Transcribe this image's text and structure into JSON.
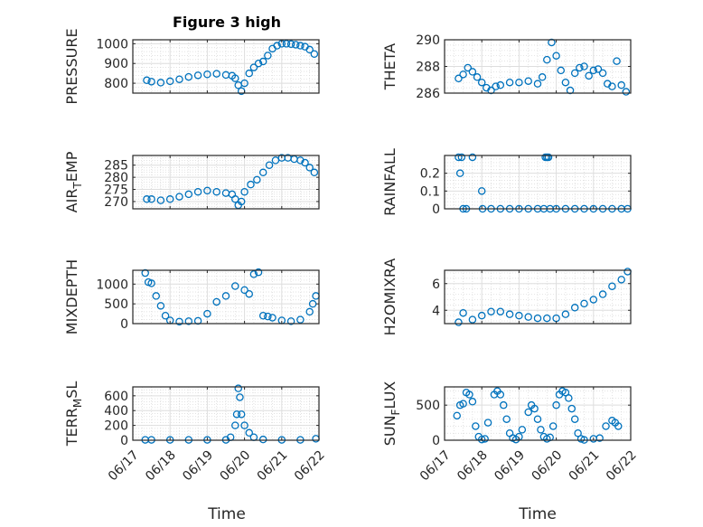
{
  "figure": {
    "title": "Figure 3 high",
    "xlabel": "Time",
    "date_ticks": [
      "06/17",
      "06/18",
      "06/19",
      "06/20",
      "06/21",
      "06/22"
    ],
    "marker_color": "#0072BD"
  },
  "chart_data": [
    {
      "type": "scatter",
      "ylabel": "PRESSURE",
      "ylim": [
        750,
        1020
      ],
      "yticks": [
        800,
        900,
        1000
      ],
      "ytick_labels": [
        "800",
        "900",
        "1000"
      ],
      "x": [
        "2022-06-17 09:00",
        "2022-06-17 12:00",
        "2022-06-17 18:00",
        "2022-06-18 00:00",
        "2022-06-18 06:00",
        "2022-06-18 12:00",
        "2022-06-18 18:00",
        "2022-06-19 00:00",
        "2022-06-19 06:00",
        "2022-06-19 12:00",
        "2022-06-19 16:00",
        "2022-06-19 18:00",
        "2022-06-19 20:00",
        "2022-06-19 22:00",
        "2022-06-20 00:00",
        "2022-06-20 03:00",
        "2022-06-20 06:00",
        "2022-06-20 09:00",
        "2022-06-20 12:00",
        "2022-06-20 15:00",
        "2022-06-20 18:00",
        "2022-06-20 21:00",
        "2022-06-21 00:00",
        "2022-06-21 03:00",
        "2022-06-21 06:00",
        "2022-06-21 09:00",
        "2022-06-21 12:00",
        "2022-06-21 15:00",
        "2022-06-21 18:00",
        "2022-06-21 21:00"
      ],
      "y": [
        815,
        808,
        803,
        810,
        820,
        832,
        840,
        845,
        848,
        842,
        838,
        825,
        790,
        760,
        800,
        850,
        880,
        900,
        910,
        940,
        975,
        990,
        1000,
        1000,
        998,
        995,
        990,
        985,
        970,
        948
      ]
    },
    {
      "type": "scatter",
      "ylabel": "THETA",
      "ylim": [
        286,
        290
      ],
      "yticks": [
        286,
        288,
        290
      ],
      "ytick_labels": [
        "286",
        "288",
        "290"
      ],
      "x": [
        "2022-06-17 09:00",
        "2022-06-17 12:00",
        "2022-06-17 15:00",
        "2022-06-17 18:00",
        "2022-06-17 21:00",
        "2022-06-18 00:00",
        "2022-06-18 03:00",
        "2022-06-18 06:00",
        "2022-06-18 09:00",
        "2022-06-18 12:00",
        "2022-06-18 18:00",
        "2022-06-19 00:00",
        "2022-06-19 06:00",
        "2022-06-19 12:00",
        "2022-06-19 15:00",
        "2022-06-19 18:00",
        "2022-06-19 21:00",
        "2022-06-20 00:00",
        "2022-06-20 03:00",
        "2022-06-20 06:00",
        "2022-06-20 09:00",
        "2022-06-20 12:00",
        "2022-06-20 15:00",
        "2022-06-20 18:00",
        "2022-06-20 21:00",
        "2022-06-21 00:00",
        "2022-06-21 03:00",
        "2022-06-21 06:00",
        "2022-06-21 09:00",
        "2022-06-21 12:00",
        "2022-06-21 15:00",
        "2022-06-21 18:00",
        "2022-06-21 21:00"
      ],
      "y": [
        287.1,
        287.4,
        287.9,
        287.6,
        287.2,
        286.8,
        286.4,
        286.2,
        286.5,
        286.6,
        286.8,
        286.8,
        286.9,
        286.7,
        287.2,
        288.5,
        289.8,
        288.8,
        287.7,
        286.8,
        286.2,
        287.5,
        287.9,
        288.0,
        287.3,
        287.7,
        287.8,
        287.5,
        286.7,
        286.5,
        288.4,
        286.6,
        286.1
      ]
    },
    {
      "type": "scatter",
      "ylabel": "AIR_TEMP",
      "ylim": [
        267,
        289
      ],
      "yticks": [
        270,
        275,
        280,
        285
      ],
      "ytick_labels": [
        "270",
        "275",
        "280",
        "285"
      ],
      "x": [
        "2022-06-17 09:00",
        "2022-06-17 12:00",
        "2022-06-17 18:00",
        "2022-06-18 00:00",
        "2022-06-18 06:00",
        "2022-06-18 12:00",
        "2022-06-18 18:00",
        "2022-06-19 00:00",
        "2022-06-19 06:00",
        "2022-06-19 12:00",
        "2022-06-19 16:00",
        "2022-06-19 18:00",
        "2022-06-19 20:00",
        "2022-06-19 22:00",
        "2022-06-20 00:00",
        "2022-06-20 04:00",
        "2022-06-20 08:00",
        "2022-06-20 12:00",
        "2022-06-20 16:00",
        "2022-06-20 20:00",
        "2022-06-21 00:00",
        "2022-06-21 04:00",
        "2022-06-21 08:00",
        "2022-06-21 12:00",
        "2022-06-21 15:00",
        "2022-06-21 18:00",
        "2022-06-21 21:00"
      ],
      "y": [
        271,
        271,
        270.5,
        271,
        272,
        273,
        274,
        274.5,
        274,
        273.5,
        273,
        271,
        268.5,
        270,
        274,
        277,
        279,
        282,
        285,
        287,
        288,
        288,
        287.5,
        287,
        286,
        284,
        282
      ]
    },
    {
      "type": "scatter",
      "ylabel": "RAINFALL",
      "ylim": [
        0,
        0.3
      ],
      "yticks": [
        0,
        0.1,
        0.2
      ],
      "ytick_labels": [
        "0",
        "0.1",
        "0.2"
      ],
      "x": [
        "2022-06-17 09:00",
        "2022-06-17 10:00",
        "2022-06-17 11:00",
        "2022-06-17 12:00",
        "2022-06-17 14:00",
        "2022-06-17 18:00",
        "2022-06-18 00:00",
        "2022-06-18 00:30",
        "2022-06-18 06:00",
        "2022-06-18 12:00",
        "2022-06-18 18:00",
        "2022-06-19 00:00",
        "2022-06-19 06:00",
        "2022-06-19 12:00",
        "2022-06-19 16:00",
        "2022-06-19 17:00",
        "2022-06-19 18:00",
        "2022-06-19 19:00",
        "2022-06-19 20:00",
        "2022-06-20 00:00",
        "2022-06-20 06:00",
        "2022-06-20 12:00",
        "2022-06-20 18:00",
        "2022-06-21 00:00",
        "2022-06-21 06:00",
        "2022-06-21 12:00",
        "2022-06-21 18:00",
        "2022-06-21 22:00"
      ],
      "y": [
        0.29,
        0.2,
        0.29,
        0,
        0,
        0.29,
        0.1,
        0,
        0,
        0,
        0,
        0,
        0,
        0,
        0,
        0.29,
        0.29,
        0.29,
        0,
        0,
        0,
        0,
        0,
        0,
        0,
        0,
        0,
        0
      ]
    },
    {
      "type": "scatter",
      "ylabel": "MIXDEPTH",
      "ylim": [
        0,
        1350
      ],
      "yticks": [
        0,
        500,
        1000
      ],
      "ytick_labels": [
        "0",
        "500",
        "1000"
      ],
      "x": [
        "2022-06-17 08:00",
        "2022-06-17 10:00",
        "2022-06-17 12:00",
        "2022-06-17 15:00",
        "2022-06-17 18:00",
        "2022-06-17 21:00",
        "2022-06-18 00:00",
        "2022-06-18 06:00",
        "2022-06-18 12:00",
        "2022-06-18 18:00",
        "2022-06-19 00:00",
        "2022-06-19 06:00",
        "2022-06-19 12:00",
        "2022-06-19 18:00",
        "2022-06-20 00:00",
        "2022-06-20 03:00",
        "2022-06-20 06:00",
        "2022-06-20 09:00",
        "2022-06-20 12:00",
        "2022-06-20 15:00",
        "2022-06-20 18:00",
        "2022-06-21 00:00",
        "2022-06-21 06:00",
        "2022-06-21 12:00",
        "2022-06-21 18:00",
        "2022-06-21 20:00",
        "2022-06-21 22:00"
      ],
      "y": [
        1280,
        1050,
        1020,
        700,
        450,
        200,
        80,
        50,
        60,
        70,
        250,
        550,
        700,
        950,
        850,
        750,
        1250,
        1300,
        200,
        180,
        150,
        80,
        60,
        100,
        300,
        500,
        700
      ]
    },
    {
      "type": "scatter",
      "ylabel": "H2OMIXRA",
      "ylim": [
        3,
        7
      ],
      "yticks": [
        4,
        6
      ],
      "ytick_labels": [
        "4",
        "6"
      ],
      "x": [
        "2022-06-17 09:00",
        "2022-06-17 12:00",
        "2022-06-17 18:00",
        "2022-06-18 00:00",
        "2022-06-18 06:00",
        "2022-06-18 12:00",
        "2022-06-18 18:00",
        "2022-06-19 00:00",
        "2022-06-19 06:00",
        "2022-06-19 12:00",
        "2022-06-19 18:00",
        "2022-06-20 00:00",
        "2022-06-20 06:00",
        "2022-06-20 12:00",
        "2022-06-20 18:00",
        "2022-06-21 00:00",
        "2022-06-21 06:00",
        "2022-06-21 12:00",
        "2022-06-21 18:00",
        "2022-06-21 22:00"
      ],
      "y": [
        3.1,
        3.8,
        3.3,
        3.6,
        3.9,
        3.9,
        3.7,
        3.6,
        3.5,
        3.4,
        3.4,
        3.4,
        3.7,
        4.2,
        4.5,
        4.8,
        5.2,
        5.8,
        6.3,
        6.9
      ]
    },
    {
      "type": "scatter",
      "ylabel": "TERR_MSL",
      "ylim": [
        0,
        720
      ],
      "yticks": [
        0,
        200,
        400,
        600
      ],
      "ytick_labels": [
        "0",
        "200",
        "400",
        "600"
      ],
      "x": [
        "2022-06-17 08:00",
        "2022-06-17 12:00",
        "2022-06-18 00:00",
        "2022-06-18 12:00",
        "2022-06-19 00:00",
        "2022-06-19 12:00",
        "2022-06-19 15:00",
        "2022-06-19 18:00",
        "2022-06-19 19:00",
        "2022-06-19 20:00",
        "2022-06-19 21:00",
        "2022-06-19 22:00",
        "2022-06-20 00:00",
        "2022-06-20 03:00",
        "2022-06-20 06:00",
        "2022-06-20 12:00",
        "2022-06-21 00:00",
        "2022-06-21 12:00",
        "2022-06-21 22:00"
      ],
      "y": [
        5,
        5,
        5,
        5,
        5,
        5,
        40,
        200,
        350,
        700,
        580,
        350,
        200,
        100,
        40,
        10,
        5,
        5,
        20
      ]
    },
    {
      "type": "scatter",
      "ylabel": "SUN_FLUX",
      "ylim": [
        0,
        760
      ],
      "yticks": [
        0,
        500
      ],
      "ytick_labels": [
        "0",
        "500"
      ],
      "x": [
        "2022-06-17 08:00",
        "2022-06-17 10:00",
        "2022-06-17 12:00",
        "2022-06-17 14:00",
        "2022-06-17 16:00",
        "2022-06-17 18:00",
        "2022-06-17 20:00",
        "2022-06-17 22:00",
        "2022-06-18 00:00",
        "2022-06-18 02:00",
        "2022-06-18 04:00",
        "2022-06-18 08:00",
        "2022-06-18 10:00",
        "2022-06-18 12:00",
        "2022-06-18 14:00",
        "2022-06-18 16:00",
        "2022-06-18 18:00",
        "2022-06-18 20:00",
        "2022-06-18 22:00",
        "2022-06-19 00:00",
        "2022-06-19 02:00",
        "2022-06-19 06:00",
        "2022-06-19 08:00",
        "2022-06-19 10:00",
        "2022-06-19 12:00",
        "2022-06-19 14:00",
        "2022-06-19 16:00",
        "2022-06-19 18:00",
        "2022-06-19 20:00",
        "2022-06-19 22:00",
        "2022-06-20 00:00",
        "2022-06-20 02:00",
        "2022-06-20 04:00",
        "2022-06-20 06:00",
        "2022-06-20 08:00",
        "2022-06-20 10:00",
        "2022-06-20 12:00",
        "2022-06-20 14:00",
        "2022-06-20 16:00",
        "2022-06-20 18:00",
        "2022-06-21 00:00",
        "2022-06-21 04:00",
        "2022-06-21 08:00",
        "2022-06-21 12:00",
        "2022-06-21 14:00",
        "2022-06-21 16:00"
      ],
      "y": [
        350,
        500,
        520,
        680,
        650,
        550,
        200,
        50,
        10,
        20,
        250,
        650,
        700,
        650,
        500,
        300,
        100,
        30,
        10,
        50,
        150,
        400,
        500,
        450,
        300,
        150,
        50,
        20,
        40,
        200,
        500,
        650,
        700,
        680,
        600,
        450,
        300,
        100,
        20,
        5,
        20,
        30,
        200,
        280,
        250,
        200
      ]
    }
  ]
}
